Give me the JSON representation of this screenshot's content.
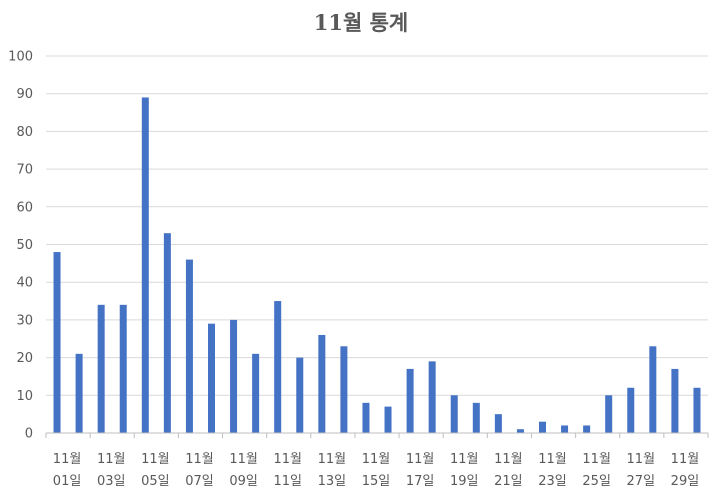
{
  "chart_data": {
    "type": "bar",
    "title": "11월 통계",
    "xlabel": "",
    "ylabel": "",
    "ylim": [
      0,
      100
    ],
    "yticks": [
      0,
      10,
      20,
      30,
      40,
      50,
      60,
      70,
      80,
      90,
      100
    ],
    "grid": true,
    "legend": "none",
    "color": "#4472C4",
    "categories": [
      "11월 01일",
      "11월 02일",
      "11월 03일",
      "11월 04일",
      "11월 05일",
      "11월 06일",
      "11월 07일",
      "11월 08일",
      "11월 09일",
      "11월 10일",
      "11월 11일",
      "11월 12일",
      "11월 13일",
      "11월 14일",
      "11월 15일",
      "11월 16일",
      "11월 17일",
      "11월 18일",
      "11월 19일",
      "11월 20일",
      "11월 21일",
      "11월 22일",
      "11월 23일",
      "11월 24일",
      "11월 25일",
      "11월 26일",
      "11월 27일",
      "11월 28일",
      "11월 29일",
      "11월 30일"
    ],
    "shown_tick_labels": [
      {
        "line1": "11월",
        "line2": "01일"
      },
      {
        "line1": "11월",
        "line2": "03일"
      },
      {
        "line1": "11월",
        "line2": "05일"
      },
      {
        "line1": "11월",
        "line2": "07일"
      },
      {
        "line1": "11월",
        "line2": "09일"
      },
      {
        "line1": "11월",
        "line2": "11일"
      },
      {
        "line1": "11월",
        "line2": "13일"
      },
      {
        "line1": "11월",
        "line2": "15일"
      },
      {
        "line1": "11월",
        "line2": "17일"
      },
      {
        "line1": "11월",
        "line2": "19일"
      },
      {
        "line1": "11월",
        "line2": "21일"
      },
      {
        "line1": "11월",
        "line2": "23일"
      },
      {
        "line1": "11월",
        "line2": "25일"
      },
      {
        "line1": "11월",
        "line2": "27일"
      },
      {
        "line1": "11월",
        "line2": "29일"
      }
    ],
    "values": [
      48,
      21,
      34,
      34,
      89,
      53,
      46,
      29,
      30,
      21,
      35,
      20,
      26,
      23,
      8,
      7,
      17,
      19,
      10,
      8,
      5,
      1,
      3,
      2,
      2,
      10,
      12,
      23,
      17,
      12
    ]
  }
}
